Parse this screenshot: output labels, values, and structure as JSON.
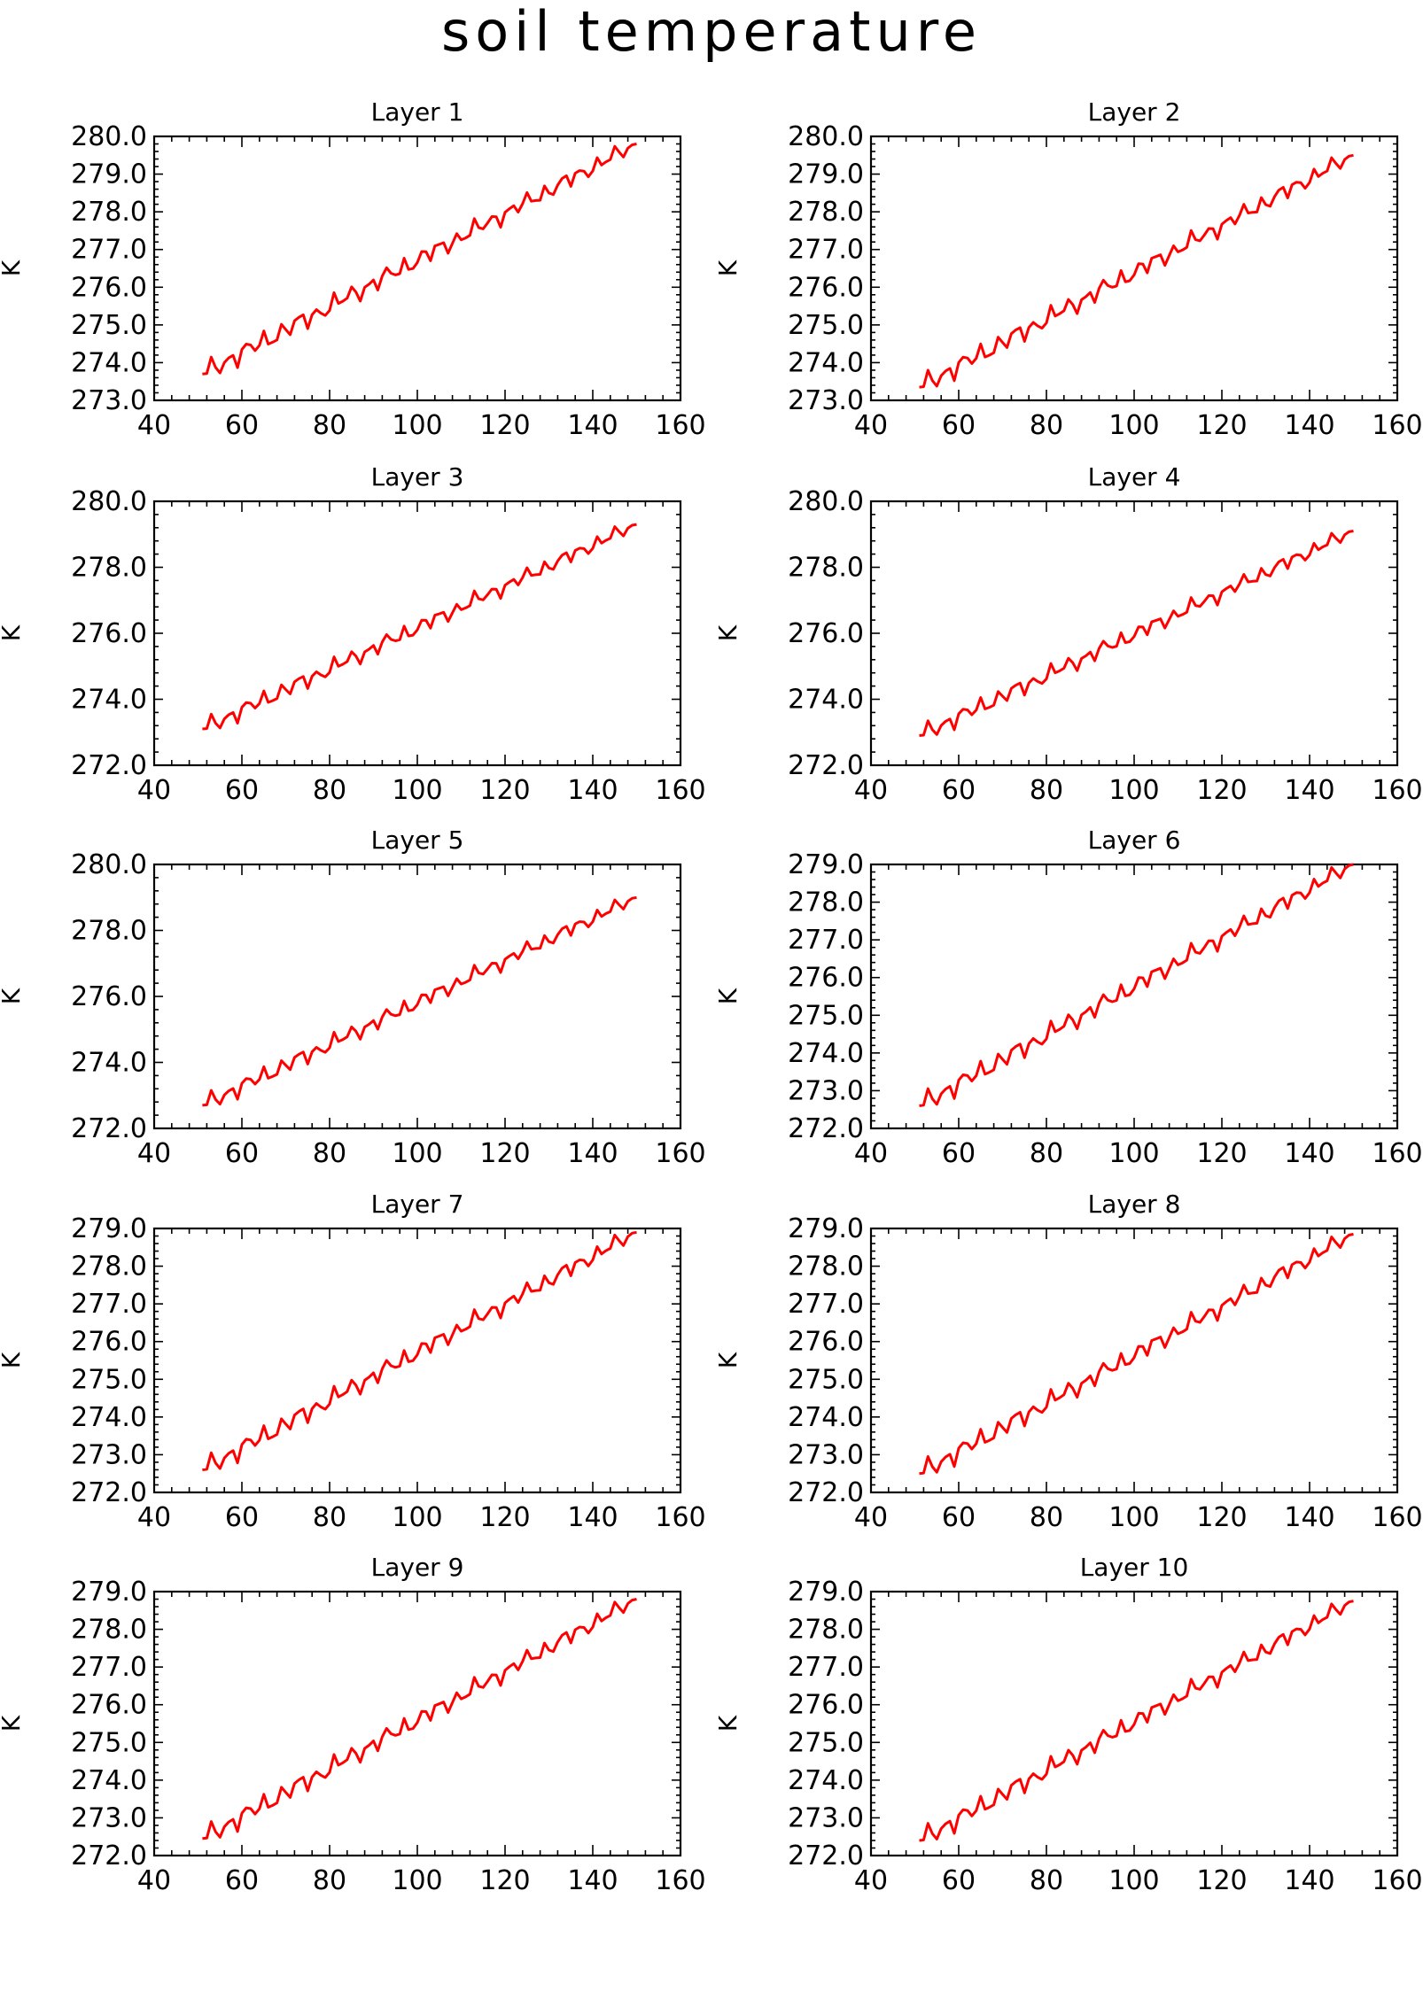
{
  "figure": {
    "title": "soil temperature"
  },
  "chart_data": [
    {
      "type": "line",
      "title": "Layer 1",
      "ylabel": "K",
      "xlabel": "",
      "xlim": [
        40,
        160
      ],
      "ylim": [
        273.0,
        280.0
      ],
      "xticks": [
        40,
        60,
        80,
        100,
        120,
        140,
        160
      ],
      "yticks": [
        273.0,
        274.0,
        275.0,
        276.0,
        277.0,
        278.0,
        279.0,
        280.0
      ],
      "x_start": 51,
      "x_end": 150,
      "start": 273.7,
      "end": 279.8,
      "color": "#ff0000"
    },
    {
      "type": "line",
      "title": "Layer 2",
      "ylabel": "K",
      "xlabel": "",
      "xlim": [
        40,
        160
      ],
      "ylim": [
        273.0,
        280.0
      ],
      "xticks": [
        40,
        60,
        80,
        100,
        120,
        140,
        160
      ],
      "yticks": [
        273.0,
        274.0,
        275.0,
        276.0,
        277.0,
        278.0,
        279.0,
        280.0
      ],
      "x_start": 51,
      "x_end": 150,
      "start": 273.35,
      "end": 279.5,
      "color": "#ff0000"
    },
    {
      "type": "line",
      "title": "Layer 3",
      "ylabel": "K",
      "xlabel": "",
      "xlim": [
        40,
        160
      ],
      "ylim": [
        272.0,
        280.0
      ],
      "xticks": [
        40,
        60,
        80,
        100,
        120,
        140,
        160
      ],
      "yticks": [
        272.0,
        274.0,
        276.0,
        278.0,
        280.0
      ],
      "x_start": 51,
      "x_end": 150,
      "start": 273.1,
      "end": 279.3,
      "color": "#ff0000"
    },
    {
      "type": "line",
      "title": "Layer 4",
      "ylabel": "K",
      "xlabel": "",
      "xlim": [
        40,
        160
      ],
      "ylim": [
        272.0,
        280.0
      ],
      "xticks": [
        40,
        60,
        80,
        100,
        120,
        140,
        160
      ],
      "yticks": [
        272.0,
        274.0,
        276.0,
        278.0,
        280.0
      ],
      "x_start": 51,
      "x_end": 150,
      "start": 272.9,
      "end": 279.1,
      "color": "#ff0000"
    },
    {
      "type": "line",
      "title": "Layer 5",
      "ylabel": "K",
      "xlabel": "",
      "xlim": [
        40,
        160
      ],
      "ylim": [
        272.0,
        280.0
      ],
      "xticks": [
        40,
        60,
        80,
        100,
        120,
        140,
        160
      ],
      "yticks": [
        272.0,
        274.0,
        276.0,
        278.0,
        280.0
      ],
      "x_start": 51,
      "x_end": 150,
      "start": 272.7,
      "end": 279.0,
      "color": "#ff0000"
    },
    {
      "type": "line",
      "title": "Layer 6",
      "ylabel": "K",
      "xlabel": "",
      "xlim": [
        40,
        160
      ],
      "ylim": [
        272.0,
        279.0
      ],
      "xticks": [
        40,
        60,
        80,
        100,
        120,
        140,
        160
      ],
      "yticks": [
        272.0,
        273.0,
        274.0,
        275.0,
        276.0,
        277.0,
        278.0,
        279.0
      ],
      "x_start": 51,
      "x_end": 150,
      "start": 272.6,
      "end": 279.0,
      "color": "#ff0000"
    },
    {
      "type": "line",
      "title": "Layer 7",
      "ylabel": "K",
      "xlabel": "",
      "xlim": [
        40,
        160
      ],
      "ylim": [
        272.0,
        279.0
      ],
      "xticks": [
        40,
        60,
        80,
        100,
        120,
        140,
        160
      ],
      "yticks": [
        272.0,
        273.0,
        274.0,
        275.0,
        276.0,
        277.0,
        278.0,
        279.0
      ],
      "x_start": 51,
      "x_end": 150,
      "start": 272.6,
      "end": 278.9,
      "color": "#ff0000"
    },
    {
      "type": "line",
      "title": "Layer 8",
      "ylabel": "K",
      "xlabel": "",
      "xlim": [
        40,
        160
      ],
      "ylim": [
        272.0,
        279.0
      ],
      "xticks": [
        40,
        60,
        80,
        100,
        120,
        140,
        160
      ],
      "yticks": [
        272.0,
        273.0,
        274.0,
        275.0,
        276.0,
        277.0,
        278.0,
        279.0
      ],
      "x_start": 51,
      "x_end": 150,
      "start": 272.5,
      "end": 278.85,
      "color": "#ff0000"
    },
    {
      "type": "line",
      "title": "Layer 9",
      "ylabel": "K",
      "xlabel": "",
      "xlim": [
        40,
        160
      ],
      "ylim": [
        272.0,
        279.0
      ],
      "xticks": [
        40,
        60,
        80,
        100,
        120,
        140,
        160
      ],
      "yticks": [
        272.0,
        273.0,
        274.0,
        275.0,
        276.0,
        277.0,
        278.0,
        279.0
      ],
      "x_start": 51,
      "x_end": 150,
      "start": 272.45,
      "end": 278.8,
      "color": "#ff0000"
    },
    {
      "type": "line",
      "title": "Layer 10",
      "ylabel": "K",
      "xlabel": "",
      "xlim": [
        40,
        160
      ],
      "ylim": [
        272.0,
        279.0
      ],
      "xticks": [
        40,
        60,
        80,
        100,
        120,
        140,
        160
      ],
      "yticks": [
        272.0,
        273.0,
        274.0,
        275.0,
        276.0,
        277.0,
        278.0,
        279.0
      ],
      "x_start": 51,
      "x_end": 150,
      "start": 272.4,
      "end": 278.75,
      "color": "#ff0000"
    }
  ]
}
